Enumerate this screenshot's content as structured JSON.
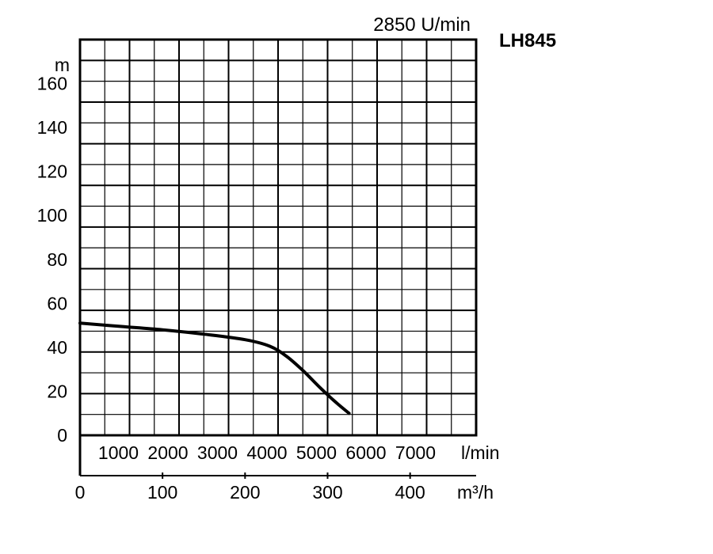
{
  "chart_data": {
    "type": "line",
    "title": "LH845",
    "subtitle": "2850 U/min",
    "ylabel": "m",
    "xlabel": "m³/h",
    "x2label": "l/min",
    "ylim": [
      0,
      180
    ],
    "xlim": [
      0,
      480
    ],
    "x2lim": [
      0,
      8000
    ],
    "yticks": [
      0,
      20,
      40,
      60,
      80,
      100,
      120,
      140,
      160
    ],
    "xticks": [
      0,
      100,
      200,
      300,
      400
    ],
    "x2ticks": [
      1000,
      2000,
      3000,
      4000,
      5000,
      6000,
      7000
    ],
    "grid": true,
    "series": [
      {
        "x": [
          0,
          50,
          100,
          150,
          200,
          230,
          250,
          270,
          290,
          310,
          326
        ],
        "y": [
          51,
          49.5,
          48,
          46,
          43.5,
          40.5,
          36,
          29.5,
          22,
          15,
          10
        ]
      }
    ]
  }
}
